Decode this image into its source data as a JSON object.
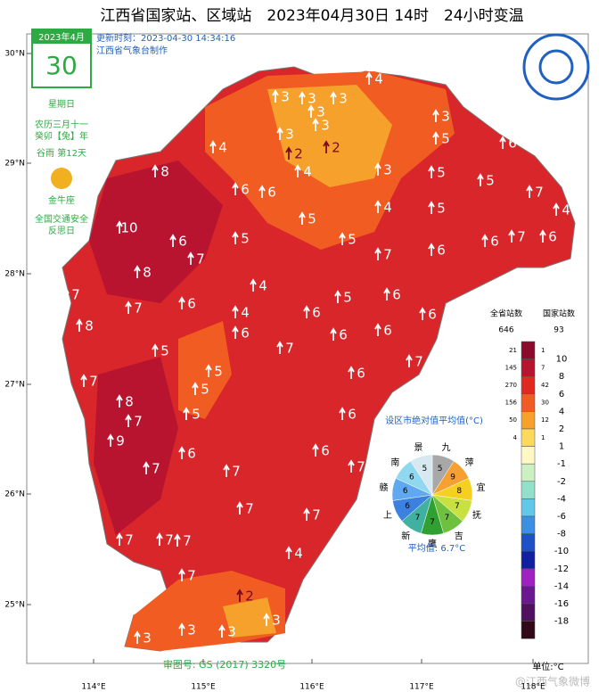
{
  "header": {
    "title": "江西省国家站、区域站　2023年04月30日 14时　24小时变温",
    "update": "更新时刻：2023-04-30 14:34:16",
    "maker": "江西省气象台制作"
  },
  "calendar": {
    "month": "2023年4月",
    "day": "30",
    "weekday": "星期日",
    "lunar": "农历三月十一",
    "year": "癸卯【兔】年",
    "term": "谷雨 第12天",
    "zodiac": "金牛座",
    "event": "全国交通安全反思日"
  },
  "axes": {
    "lat": [
      "30°N",
      "29°N",
      "28°N",
      "27°N",
      "26°N",
      "25°N"
    ],
    "lon": [
      "114°E",
      "115°E",
      "116°E",
      "117°E",
      "118°E"
    ]
  },
  "stations": [
    4,
    3,
    3,
    3,
    3,
    3,
    3,
    5,
    6,
    3,
    4,
    2,
    2,
    3,
    5,
    5,
    7,
    8,
    6,
    6,
    4,
    4,
    5,
    4,
    10,
    6,
    5,
    5,
    5,
    7,
    6,
    6,
    7,
    6,
    7,
    8,
    4,
    5,
    6,
    7,
    7,
    6,
    4,
    6,
    6,
    8,
    5,
    6,
    7,
    6,
    6,
    5,
    6,
    7,
    7,
    8,
    5,
    5,
    7,
    9,
    6,
    6,
    7,
    7,
    6,
    7,
    7,
    7,
    7,
    7,
    7,
    4,
    7,
    2,
    3,
    3,
    3,
    3
  ],
  "legend": {
    "province_label": "全省站数",
    "national_label": "国家站数",
    "province_total": 646,
    "national_total": 93,
    "levels": [
      10,
      8,
      6,
      4,
      2,
      1,
      -1,
      -2,
      -4,
      -6,
      -8,
      -10,
      -12,
      -14,
      -16,
      -18
    ],
    "colors": [
      "#8c0b2c",
      "#b8142f",
      "#e02a20",
      "#f05c22",
      "#f5a12c",
      "#fad95c",
      "#fff8c4",
      "#ccf0c2",
      "#92e0ca",
      "#62c8ea",
      "#3c90e0",
      "#1e50c8",
      "#1020a0",
      "#a020c0",
      "#6a1890",
      "#501060",
      "#300818"
    ],
    "province_counts": [
      21,
      145,
      270,
      156,
      50,
      4
    ],
    "national_counts": [
      1,
      7,
      42,
      30,
      12,
      1
    ],
    "unit": "单位:°C"
  },
  "pie": {
    "title": "设区市绝对值平均值(°C)",
    "names": [
      "九",
      "萍",
      "宜",
      "抚",
      "吉",
      "鹰",
      "新",
      "上",
      "赣",
      "南",
      "景"
    ],
    "values": [
      5,
      9,
      8,
      7,
      7,
      7,
      7,
      6,
      6,
      6,
      5
    ],
    "colors": [
      "#a8a8a8",
      "#f5a030",
      "#f5d020",
      "#c8e040",
      "#70c040",
      "#30a030",
      "#40b0a0",
      "#3c80e0",
      "#60a8f0",
      "#90d8f0",
      "#d8e8f0"
    ],
    "mean": "平均值: 6.7°C"
  },
  "footer": {
    "approval": "审图号: GS (2017) 3320号",
    "watermark": "@江西气象微博"
  }
}
